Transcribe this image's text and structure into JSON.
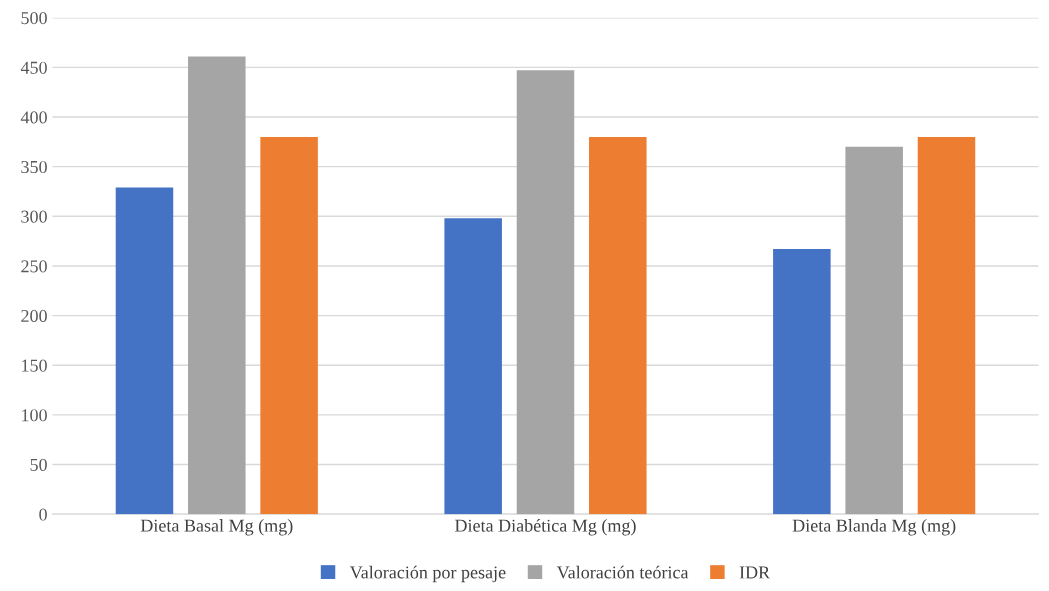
{
  "chart_data": {
    "type": "bar",
    "categories": [
      "Dieta Basal Mg (mg)",
      "Dieta Diabética Mg (mg)",
      "Dieta Blanda Mg (mg)"
    ],
    "series": [
      {
        "name": "Valoración por pesaje",
        "color": "#4472c4",
        "values": [
          329,
          298,
          267
        ]
      },
      {
        "name": "Valoración teórica",
        "color": "#a5a5a5",
        "values": [
          461,
          447,
          370
        ]
      },
      {
        "name": "IDR",
        "color": "#ed7d31",
        "values": [
          380,
          380,
          380
        ]
      }
    ],
    "ylim": [
      0,
      500
    ],
    "yticks": [
      0,
      50,
      100,
      150,
      200,
      250,
      300,
      350,
      400,
      450,
      500
    ],
    "grid": "y",
    "legend": "bottom"
  }
}
